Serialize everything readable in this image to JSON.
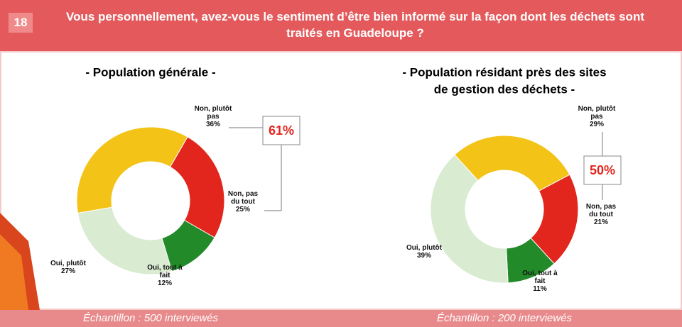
{
  "header": {
    "number": "18",
    "question": "Vous personnellement, avez-vous le sentiment d’être bien informé sur la façon dont les déchets sont traités en Guadeloupe ?"
  },
  "chart_data": [
    {
      "type": "donut",
      "title": "- Population générale -",
      "categories": [
        "Non, pas du tout",
        "Oui, tout à fait",
        "Oui, plutôt",
        "Non, plutôt pas"
      ],
      "values": [
        25,
        12,
        27,
        36
      ],
      "value_labels": [
        "25%",
        "12%",
        "27%",
        "36%"
      ],
      "colors": [
        "#e2261d",
        "#238a2a",
        "#d9ebd1",
        "#f3c318"
      ],
      "callout": "61%",
      "note": "Échantillon : 500 interviewés"
    },
    {
      "type": "donut",
      "title": [
        "- Population résidant près des sites",
        "de gestion des déchets -"
      ],
      "categories": [
        "Non, pas du tout",
        "Oui, tout à fait",
        "Oui, plutôt",
        "Non, plutôt pas"
      ],
      "values": [
        21,
        11,
        39,
        29
      ],
      "value_labels": [
        "21%",
        "11%",
        "39%",
        "29%"
      ],
      "colors": [
        "#e2261d",
        "#238a2a",
        "#d9ebd1",
        "#f3c318"
      ],
      "callout": "50%",
      "note": "Échantillon : 200 interviewés"
    }
  ]
}
